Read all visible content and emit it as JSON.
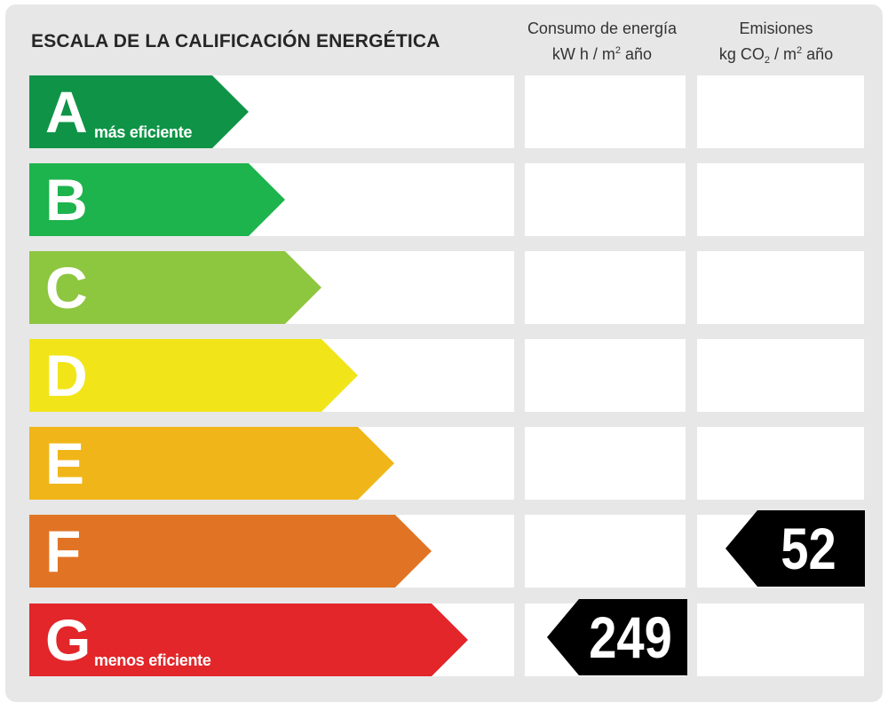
{
  "title": "ESCALA DE LA CALIFICACIÓN ENERGÉTICA",
  "columns": {
    "energy": {
      "line1": "Consumo de energía",
      "line2_pre": "kW h  / m",
      "line2_sup": "2",
      "line2_post": " año"
    },
    "emissions": {
      "line1": "Emisiones",
      "line2_pre": "kg CO",
      "line2_sub": "2",
      "line2_mid": "  / m",
      "line2_sup": "2",
      "line2_post": " año"
    }
  },
  "ratings": [
    {
      "letter": "A",
      "sublabel": "más eficiente",
      "color": "#0f9447"
    },
    {
      "letter": "B",
      "sublabel": "",
      "color": "#1db34d"
    },
    {
      "letter": "C",
      "sublabel": "",
      "color": "#8dc63f"
    },
    {
      "letter": "D",
      "sublabel": "",
      "color": "#f1e51a"
    },
    {
      "letter": "E",
      "sublabel": "",
      "color": "#f0b519"
    },
    {
      "letter": "F",
      "sublabel": "",
      "color": "#e17424"
    },
    {
      "letter": "G",
      "sublabel": "menos eficiente",
      "color": "#e2262a"
    }
  ],
  "result": {
    "energy": {
      "rating": "G",
      "value": "249"
    },
    "emissions": {
      "rating": "F",
      "value": "52"
    }
  }
}
